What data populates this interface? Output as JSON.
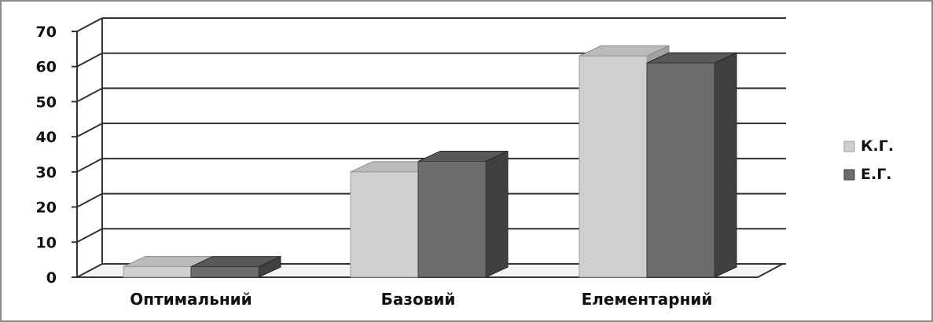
{
  "chart_data": {
    "type": "bar",
    "style": "3d-clustered-column",
    "categories": [
      "Оптимальний",
      "Базовий",
      "Елементарний"
    ],
    "series": [
      {
        "name": "К.Г.",
        "values": [
          3,
          30,
          63
        ],
        "color": "#cfcfcf"
      },
      {
        "name": "Е.Г.",
        "values": [
          3,
          33,
          61
        ],
        "color": "#6d6d6d"
      }
    ],
    "ylim": [
      0,
      70
    ],
    "yticks": [
      0,
      10,
      20,
      30,
      40,
      50,
      60,
      70
    ],
    "title": "",
    "xlabel": "",
    "ylabel": "",
    "grid": true,
    "legend_position": "right"
  }
}
